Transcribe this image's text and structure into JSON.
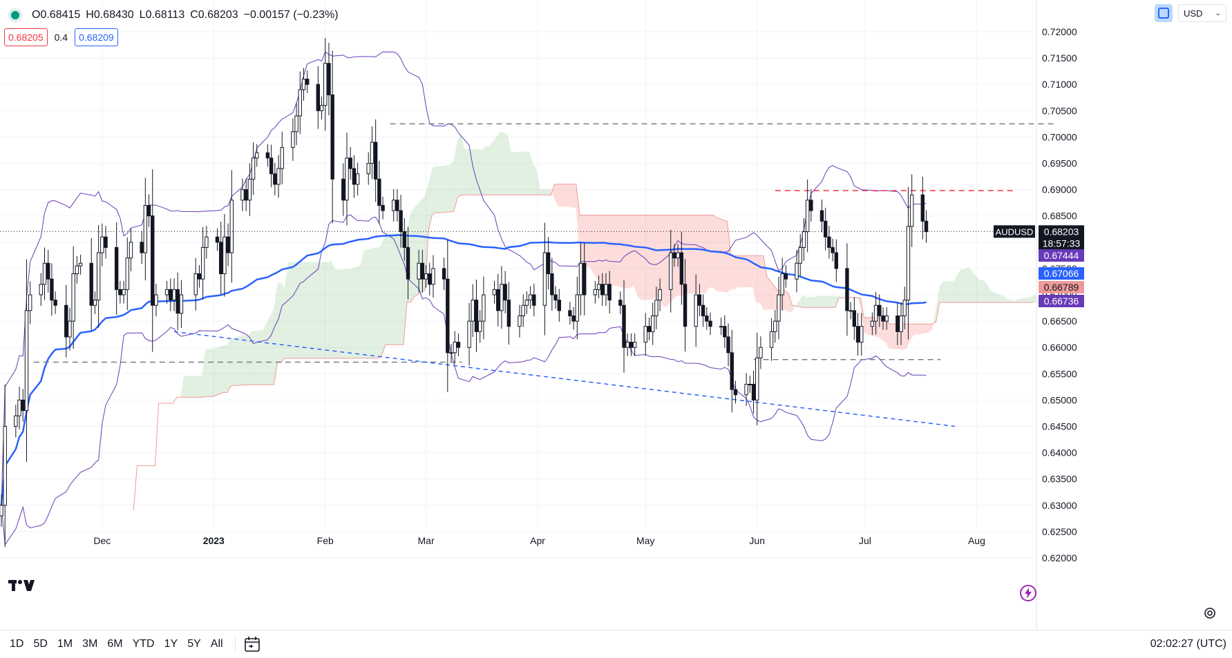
{
  "header": {
    "open": "O0.68415",
    "high": "H0.68430",
    "low": "L0.68113",
    "close": "C0.68203",
    "change": "−0.00157 (−0.23%)",
    "bid": "0.68205",
    "spread": "0.4",
    "ask": "0.68209",
    "currency": "USD"
  },
  "bottom_bar": {
    "ranges": [
      "1D",
      "5D",
      "1M",
      "3M",
      "6M",
      "YTD",
      "1Y",
      "5Y",
      "All"
    ],
    "clock": "02:02:27 (UTC)"
  },
  "icons": {
    "logo": "tradingview-logo-icon",
    "sync": "sync-icon",
    "calendar": "date-range-icon",
    "settings": "gear-icon",
    "bolt": "lightning-icon"
  },
  "chart_data": {
    "type": "candlestick",
    "symbol": "AUDUSD",
    "last_price": "0.68203",
    "countdown": "18:57:33",
    "ylim": [
      0.6175,
      0.7235
    ],
    "y_ticks": [
      "0.72000",
      "0.71500",
      "0.71000",
      "0.70500",
      "0.70000",
      "0.69500",
      "0.69000",
      "0.68500",
      "0.68000",
      "0.67500",
      "0.67000",
      "0.66500",
      "0.66000",
      "0.65500",
      "0.65000",
      "0.64500",
      "0.64000",
      "0.63500",
      "0.63000",
      "0.62500",
      "0.62000"
    ],
    "x_ticks": [
      {
        "label": "Dec",
        "date": "2022-12-01"
      },
      {
        "label": "2023",
        "date": "2023-01-01"
      },
      {
        "label": "Feb",
        "date": "2023-02-01"
      },
      {
        "label": "Mar",
        "date": "2023-03-01"
      },
      {
        "label": "Apr",
        "date": "2023-04-01"
      },
      {
        "label": "May",
        "date": "2023-05-01"
      },
      {
        "label": "Jun",
        "date": "2023-06-01"
      },
      {
        "label": "Jul",
        "date": "2023-07-01"
      },
      {
        "label": "Aug",
        "date": "2023-08-01"
      }
    ],
    "x_range": [
      "2022-11-03",
      "2023-08-23"
    ],
    "price_labels": [
      {
        "value": "0.67444",
        "color": "#673ab7"
      },
      {
        "value": "0.67066",
        "color": "#2962ff"
      },
      {
        "value": "0.66789",
        "color": "#ef9a9a"
      },
      {
        "value": "0.66736",
        "color": "#673ab7"
      }
    ],
    "closes": [
      [
        "2022-11-03",
        0.63
      ],
      [
        "2022-11-04",
        0.645
      ],
      [
        "2022-11-07",
        0.647
      ],
      [
        "2022-11-08",
        0.65
      ],
      [
        "2022-11-09",
        0.648
      ],
      [
        "2022-11-10",
        0.667
      ],
      [
        "2022-11-11",
        0.67
      ],
      [
        "2022-11-14",
        0.672
      ],
      [
        "2022-11-15",
        0.676
      ],
      [
        "2022-11-16",
        0.673
      ],
      [
        "2022-11-17",
        0.669
      ],
      [
        "2022-11-18",
        0.668
      ],
      [
        "2022-11-21",
        0.662
      ],
      [
        "2022-11-22",
        0.665
      ],
      [
        "2022-11-23",
        0.674
      ],
      [
        "2022-11-24",
        0.6755
      ],
      [
        "2022-11-25",
        0.676
      ],
      [
        "2022-11-28",
        0.668
      ],
      [
        "2022-11-29",
        0.669
      ],
      [
        "2022-11-30",
        0.678
      ],
      [
        "2022-12-01",
        0.681
      ],
      [
        "2022-12-02",
        0.679
      ],
      [
        "2022-12-05",
        0.671
      ],
      [
        "2022-12-06",
        0.67
      ],
      [
        "2022-12-07",
        0.671
      ],
      [
        "2022-12-08",
        0.677
      ],
      [
        "2022-12-09",
        0.68
      ],
      [
        "2022-12-12",
        0.678
      ],
      [
        "2022-12-13",
        0.687
      ],
      [
        "2022-12-14",
        0.685
      ],
      [
        "2022-12-15",
        0.668
      ],
      [
        "2022-12-16",
        0.67
      ],
      [
        "2022-12-19",
        0.671
      ],
      [
        "2022-12-20",
        0.669
      ],
      [
        "2022-12-21",
        0.671
      ],
      [
        "2022-12-22",
        0.6665
      ],
      [
        "2022-12-23",
        0.67
      ],
      [
        "2022-12-27",
        0.674
      ],
      [
        "2022-12-28",
        0.673
      ],
      [
        "2022-12-29",
        0.679
      ],
      [
        "2022-12-30",
        0.681
      ],
      [
        "2023-01-02",
        0.68
      ],
      [
        "2023-01-03",
        0.674
      ],
      [
        "2023-01-04",
        0.681
      ],
      [
        "2023-01-05",
        0.678
      ],
      [
        "2023-01-06",
        0.688
      ],
      [
        "2023-01-09",
        0.69
      ],
      [
        "2023-01-10",
        0.688
      ],
      [
        "2023-01-11",
        0.692
      ],
      [
        "2023-01-12",
        0.696
      ],
      [
        "2023-01-13",
        0.697
      ],
      [
        "2023-01-16",
        0.696
      ],
      [
        "2023-01-17",
        0.693
      ],
      [
        "2023-01-18",
        0.691
      ],
      [
        "2023-01-19",
        0.694
      ],
      [
        "2023-01-20",
        0.698
      ],
      [
        "2023-01-23",
        0.701
      ],
      [
        "2023-01-24",
        0.704
      ],
      [
        "2023-01-25",
        0.709
      ],
      [
        "2023-01-26",
        0.711
      ],
      [
        "2023-01-27",
        0.71
      ],
      [
        "2023-01-30",
        0.705
      ],
      [
        "2023-01-31",
        0.706
      ],
      [
        "2023-02-01",
        0.714
      ],
      [
        "2023-02-02",
        0.708
      ],
      [
        "2023-02-03",
        0.692
      ],
      [
        "2023-02-06",
        0.688
      ],
      [
        "2023-02-07",
        0.696
      ],
      [
        "2023-02-08",
        0.694
      ],
      [
        "2023-02-09",
        0.691
      ],
      [
        "2023-02-10",
        0.693
      ],
      [
        "2023-02-13",
        0.695
      ],
      [
        "2023-02-14",
        0.699
      ],
      [
        "2023-02-15",
        0.692
      ],
      [
        "2023-02-16",
        0.687
      ],
      [
        "2023-02-17",
        0.686
      ],
      [
        "2023-02-20",
        0.688
      ],
      [
        "2023-02-21",
        0.686
      ],
      [
        "2023-02-22",
        0.682
      ],
      [
        "2023-02-23",
        0.679
      ],
      [
        "2023-02-24",
        0.673
      ],
      [
        "2023-02-27",
        0.676
      ],
      [
        "2023-02-28",
        0.673
      ],
      [
        "2023-03-01",
        0.674
      ],
      [
        "2023-03-02",
        0.672
      ],
      [
        "2023-03-03",
        0.675
      ],
      [
        "2023-03-06",
        0.673
      ],
      [
        "2023-03-07",
        0.659
      ],
      [
        "2023-03-08",
        0.659
      ],
      [
        "2023-03-09",
        0.661
      ],
      [
        "2023-03-10",
        0.66
      ],
      [
        "2023-03-13",
        0.665
      ],
      [
        "2023-03-14",
        0.669
      ],
      [
        "2023-03-15",
        0.663
      ],
      [
        "2023-03-16",
        0.665
      ],
      [
        "2023-03-17",
        0.67
      ],
      [
        "2023-03-20",
        0.671
      ],
      [
        "2023-03-21",
        0.667
      ],
      [
        "2023-03-22",
        0.672
      ],
      [
        "2023-03-23",
        0.669
      ],
      [
        "2023-03-24",
        0.664
      ],
      [
        "2023-03-27",
        0.666
      ],
      [
        "2023-03-28",
        0.668
      ],
      [
        "2023-03-29",
        0.669
      ],
      [
        "2023-03-30",
        0.67
      ],
      [
        "2023-03-31",
        0.668
      ],
      [
        "2023-04-03",
        0.678
      ],
      [
        "2023-04-04",
        0.674
      ],
      [
        "2023-04-05",
        0.67
      ],
      [
        "2023-04-06",
        0.669
      ],
      [
        "2023-04-07",
        0.667
      ],
      [
        "2023-04-10",
        0.666
      ],
      [
        "2023-04-11",
        0.665
      ],
      [
        "2023-04-12",
        0.67
      ],
      [
        "2023-04-13",
        0.676
      ],
      [
        "2023-04-14",
        0.67
      ],
      [
        "2023-04-17",
        0.671
      ],
      [
        "2023-04-18",
        0.672
      ],
      [
        "2023-04-19",
        0.67
      ],
      [
        "2023-04-20",
        0.672
      ],
      [
        "2023-04-21",
        0.669
      ],
      [
        "2023-04-24",
        0.668
      ],
      [
        "2023-04-25",
        0.66
      ],
      [
        "2023-04-26",
        0.661
      ],
      [
        "2023-04-27",
        0.66
      ],
      [
        "2023-04-28",
        0.661
      ],
      [
        "2023-05-01",
        0.664
      ],
      [
        "2023-05-02",
        0.663
      ],
      [
        "2023-05-03",
        0.666
      ],
      [
        "2023-05-04",
        0.669
      ],
      [
        "2023-05-05",
        0.671
      ],
      [
        "2023-05-08",
        0.678
      ],
      [
        "2023-05-09",
        0.677
      ],
      [
        "2023-05-10",
        0.678
      ],
      [
        "2023-05-11",
        0.672
      ],
      [
        "2023-05-12",
        0.664
      ],
      [
        "2023-05-15",
        0.67
      ],
      [
        "2023-05-16",
        0.668
      ],
      [
        "2023-05-17",
        0.666
      ],
      [
        "2023-05-18",
        0.665
      ],
      [
        "2023-05-19",
        0.664
      ],
      [
        "2023-05-22",
        0.664
      ],
      [
        "2023-05-23",
        0.662
      ],
      [
        "2023-05-24",
        0.659
      ],
      [
        "2023-05-25",
        0.652
      ],
      [
        "2023-05-26",
        0.651
      ],
      [
        "2023-05-29",
        0.653
      ],
      [
        "2023-05-30",
        0.653
      ],
      [
        "2023-05-31",
        0.65
      ],
      [
        "2023-06-01",
        0.658
      ],
      [
        "2023-06-02",
        0.66
      ],
      [
        "2023-06-05",
        0.663
      ],
      [
        "2023-06-06",
        0.665
      ],
      [
        "2023-06-07",
        0.67
      ],
      [
        "2023-06-08",
        0.674
      ],
      [
        "2023-06-09",
        0.673
      ],
      [
        "2023-06-12",
        0.676
      ],
      [
        "2023-06-13",
        0.679
      ],
      [
        "2023-06-14",
        0.682
      ],
      [
        "2023-06-15",
        0.688
      ],
      [
        "2023-06-16",
        0.686
      ],
      [
        "2023-06-19",
        0.684
      ],
      [
        "2023-06-20",
        0.681
      ],
      [
        "2023-06-21",
        0.679
      ],
      [
        "2023-06-22",
        0.678
      ],
      [
        "2023-06-23",
        0.675
      ],
      [
        "2023-06-26",
        0.667
      ],
      [
        "2023-06-27",
        0.667
      ],
      [
        "2023-06-28",
        0.664
      ],
      [
        "2023-06-29",
        0.661
      ],
      [
        "2023-06-30",
        0.664
      ],
      [
        "2023-07-03",
        0.665
      ],
      [
        "2023-07-04",
        0.668
      ],
      [
        "2023-07-05",
        0.666
      ],
      [
        "2023-07-06",
        0.665
      ],
      [
        "2023-07-07",
        0.666
      ],
      [
        "2023-07-10",
        0.663
      ],
      [
        "2023-07-11",
        0.666
      ],
      [
        "2023-07-12",
        0.669
      ],
      [
        "2023-07-13",
        0.683
      ],
      [
        "2023-07-14",
        0.689
      ],
      [
        "2023-07-17",
        0.684
      ],
      [
        "2023-07-18",
        0.682
      ]
    ],
    "support_resistance": [
      {
        "from": "2023-02-19",
        "to": "2023-08-23",
        "y": 0.7025,
        "color": "#787b86"
      },
      {
        "from": "2023-06-06",
        "to": "2023-08-12",
        "y": 0.6898,
        "color": "#f23645"
      },
      {
        "from": "2022-11-12",
        "to": "2023-03-11",
        "y": 0.6572,
        "color": "#787b86"
      },
      {
        "from": "2023-05-31",
        "to": "2023-07-22",
        "y": 0.6577,
        "color": "#787b86"
      }
    ],
    "trendline": {
      "from": [
        "2022-12-21",
        0.663
      ],
      "to": [
        "2023-07-26",
        0.645
      ],
      "color": "#2962ff"
    }
  }
}
